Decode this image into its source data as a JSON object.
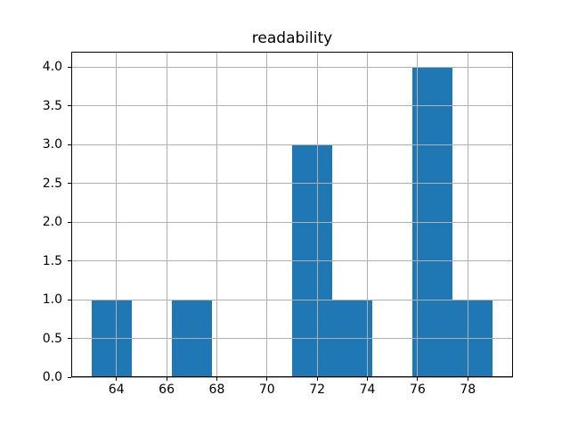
{
  "figure": {
    "background": "#ffffff"
  },
  "chart_data": {
    "type": "bar",
    "variant": "histogram",
    "title": "readability",
    "xlabel": "",
    "ylabel": "",
    "bin_edges": [
      63.0,
      64.6,
      66.2,
      67.8,
      69.4,
      71.0,
      72.6,
      74.2,
      75.8,
      77.4,
      79.0
    ],
    "counts": [
      1,
      0,
      1,
      0,
      0,
      3,
      1,
      0,
      4,
      1
    ],
    "xlim": [
      62.2,
      79.8
    ],
    "ylim": [
      0,
      4.2
    ],
    "xticklabels": [
      "64",
      "66",
      "68",
      "70",
      "72",
      "74",
      "76",
      "78"
    ],
    "yticklabels": [
      "0.0",
      "0.5",
      "1.0",
      "1.5",
      "2.0",
      "2.5",
      "3.0",
      "3.5",
      "4.0"
    ],
    "grid": "on",
    "grid_position": "above-bars",
    "legend": "none",
    "bar_color": "#1f77b4",
    "grid_color": "#b0b0b0",
    "axis_color": "#000000",
    "tick_label_color": "#000000"
  }
}
